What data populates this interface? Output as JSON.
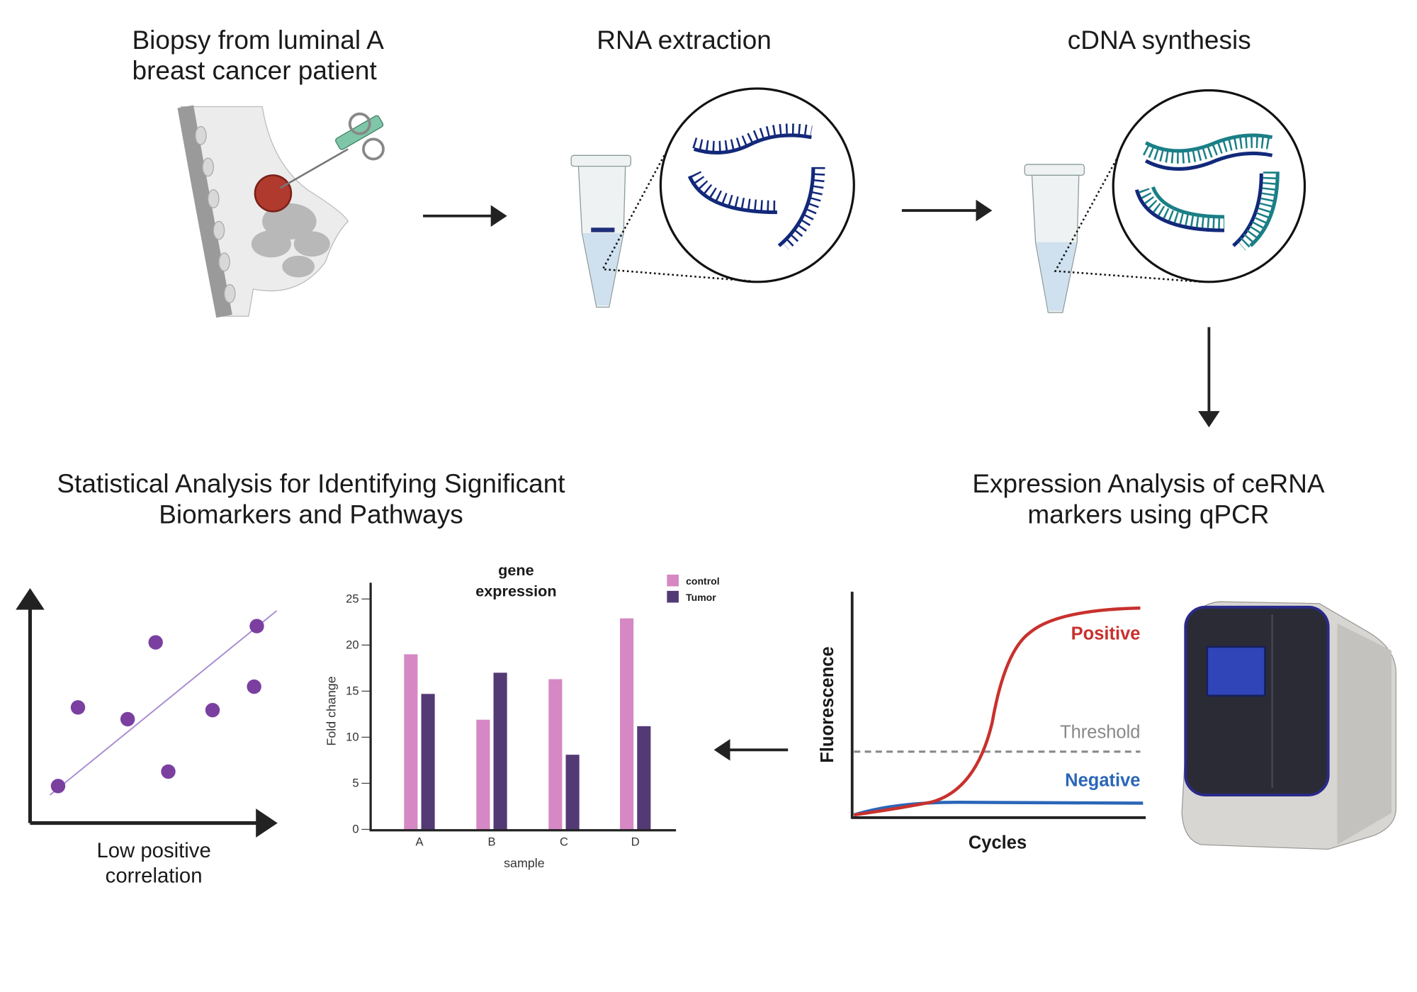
{
  "steps": {
    "biopsy": {
      "line1": "Biopsy from luminal A",
      "line2": "breast cancer patient"
    },
    "rna": {
      "title": "RNA extraction"
    },
    "cdna": {
      "title": "cDNA synthesis"
    },
    "qpcr": {
      "line1": "Expression Analysis of ceRNA",
      "line2": "markers using qPCR"
    },
    "stats": {
      "line1": "Statistical Analysis for Identifying Significant",
      "line2": "Biomarkers and Pathways"
    }
  },
  "scatter": {
    "caption_line1": "Low positive",
    "caption_line2": "correlation",
    "point_color": "#7b3fa0"
  },
  "qpcr_plot": {
    "ylabel": "Fluorescence",
    "xlabel": "Cycles",
    "positive_label": "Positive",
    "threshold_label": "Threshold",
    "negative_label": "Negative",
    "positive_color": "#c8312d",
    "negative_color": "#2a66b8",
    "threshold_color": "#888888"
  },
  "chart_data": {
    "type": "bar",
    "title_line1": "gene",
    "title_line2": "expression",
    "xlabel": "sample",
    "ylabel": "Fold change",
    "categories": [
      "A",
      "B",
      "C",
      "D"
    ],
    "ylim": [
      0,
      25
    ],
    "yticks": [
      0,
      5,
      10,
      15,
      20,
      25
    ],
    "legend_position": "top-right",
    "series": [
      {
        "name": "control",
        "color": "#d688c4",
        "values": [
          19,
          11.9,
          16.3,
          22.9
        ]
      },
      {
        "name": "Tumor",
        "color": "#533a75",
        "values": [
          14.7,
          17,
          8.1,
          11.2
        ]
      }
    ]
  }
}
